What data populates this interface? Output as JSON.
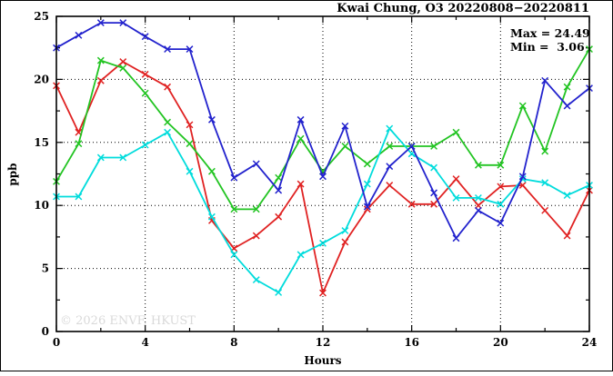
{
  "title": "Kwai Chung, O3 20220808−20220811",
  "annotation": {
    "max_label": "Max = 24.49",
    "min_label": "Min =  3.06"
  },
  "watermark": "© 2026 ENVF, HKUST",
  "chart_data": {
    "type": "line",
    "title": "Kwai Chung, O3 20220808−20220811",
    "xlabel": "Hours",
    "ylabel": "ppb",
    "xlim": [
      0,
      24
    ],
    "ylim": [
      0,
      25
    ],
    "x_major_ticks": [
      0,
      4,
      8,
      12,
      16,
      20,
      24
    ],
    "x_minor_step": 2,
    "y_major_ticks": [
      0,
      5,
      10,
      15,
      20,
      25
    ],
    "y_minor_step": 2.5,
    "grid_x": [
      4,
      8,
      12,
      16,
      20
    ],
    "grid_y": [
      5,
      10,
      15,
      20
    ],
    "grid_on": true,
    "legend_position": "none",
    "max_value": 24.49,
    "min_value": 3.06,
    "x": [
      0,
      1,
      2,
      3,
      4,
      5,
      6,
      7,
      8,
      9,
      10,
      11,
      12,
      13,
      14,
      15,
      16,
      17,
      18,
      19,
      20,
      21,
      22,
      23,
      24
    ],
    "series": [
      {
        "name": "red-line",
        "color": "#e02222",
        "values": [
          19.5,
          15.8,
          19.9,
          21.4,
          20.4,
          19.4,
          16.4,
          8.8,
          6.6,
          7.6,
          9.1,
          11.7,
          3.06,
          7.1,
          9.7,
          11.6,
          10.1,
          10.1,
          12.1,
          10.0,
          11.5,
          11.6,
          9.6,
          7.6,
          11.2
        ]
      },
      {
        "name": "green-line",
        "color": "#22c422",
        "values": [
          11.9,
          14.9,
          21.5,
          20.9,
          18.9,
          16.6,
          14.9,
          12.7,
          9.7,
          9.7,
          12.2,
          15.3,
          12.7,
          14.7,
          13.3,
          14.7,
          14.7,
          14.7,
          15.8,
          13.2,
          13.2,
          17.9,
          14.3,
          19.4,
          22.4
        ]
      },
      {
        "name": "cyan-line",
        "color": "#00dcdc",
        "values": [
          10.7,
          10.7,
          13.8,
          13.8,
          14.8,
          15.8,
          12.7,
          9.1,
          6.1,
          4.1,
          3.1,
          6.1,
          7.0,
          8.0,
          11.7,
          16.1,
          14.1,
          13.0,
          10.6,
          10.6,
          10.1,
          12.1,
          11.8,
          10.8,
          11.6
        ]
      },
      {
        "name": "blue-line",
        "color": "#2222cd",
        "values": [
          22.5,
          23.5,
          24.49,
          24.49,
          23.4,
          22.4,
          22.4,
          16.8,
          12.2,
          13.3,
          11.2,
          16.8,
          12.3,
          16.3,
          9.9,
          13.1,
          14.7,
          11.0,
          7.4,
          9.6,
          8.6,
          12.3,
          19.9,
          17.9,
          19.3
        ]
      }
    ]
  }
}
